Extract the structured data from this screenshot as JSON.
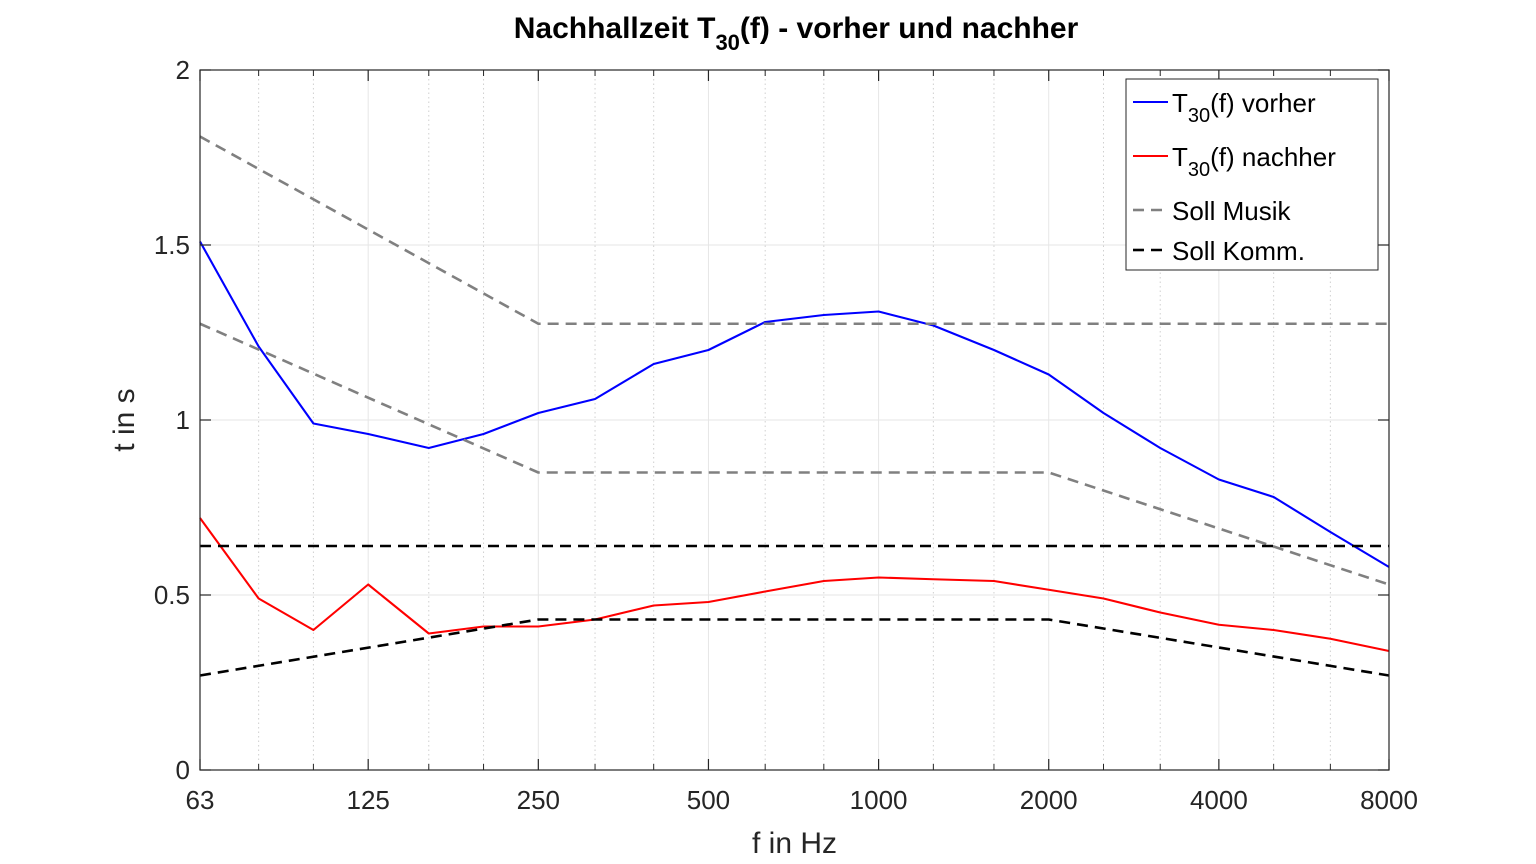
{
  "chart_data": {
    "type": "line",
    "title": {
      "main": "Nachhallzeit T",
      "sub": "30",
      "rest": "(f) - vorher und nachher"
    },
    "xlabel": "f in Hz",
    "ylabel": "t in s",
    "x_scale": "log2",
    "xlim": [
      63,
      8000
    ],
    "ylim": [
      0,
      2
    ],
    "x_ticks": [
      63,
      125,
      250,
      500,
      1000,
      2000,
      4000,
      8000
    ],
    "x_tick_labels": [
      "63",
      "125",
      "250",
      "500",
      "1000",
      "2000",
      "4000",
      "8000"
    ],
    "y_ticks": [
      0,
      0.5,
      1,
      1.5,
      2
    ],
    "y_tick_labels": [
      "0",
      "0.5",
      "1",
      "1.5",
      "2"
    ],
    "x_minor_ticks": [
      80,
      100,
      160,
      200,
      315,
      400,
      630,
      800,
      1250,
      1600,
      2500,
      3150,
      5000,
      6300
    ],
    "grid": true,
    "legend_position": "top-right",
    "series": [
      {
        "name_main": "T",
        "name_sub": "30",
        "name_rest": "(f) vorher",
        "color": "#0000ff",
        "style": "solid",
        "x": [
          63,
          80,
          100,
          125,
          160,
          200,
          250,
          315,
          400,
          500,
          630,
          800,
          1000,
          1250,
          1600,
          2000,
          2500,
          3150,
          4000,
          5000,
          6300,
          8000
        ],
        "y": [
          1.51,
          1.21,
          0.99,
          0.96,
          0.92,
          0.96,
          1.02,
          1.06,
          1.16,
          1.2,
          1.28,
          1.3,
          1.31,
          1.27,
          1.2,
          1.13,
          1.02,
          0.92,
          0.83,
          0.78,
          0.68,
          0.58
        ]
      },
      {
        "name_main": "T",
        "name_sub": "30",
        "name_rest": "(f) nachher",
        "color": "#ff0000",
        "style": "solid",
        "x": [
          63,
          80,
          100,
          125,
          160,
          200,
          250,
          315,
          400,
          500,
          630,
          800,
          1000,
          1250,
          1600,
          2000,
          2500,
          3150,
          4000,
          5000,
          6300,
          8000
        ],
        "y": [
          0.72,
          0.49,
          0.4,
          0.53,
          0.39,
          0.41,
          0.41,
          0.43,
          0.47,
          0.48,
          0.51,
          0.54,
          0.55,
          0.545,
          0.54,
          0.515,
          0.49,
          0.45,
          0.415,
          0.4,
          0.375,
          0.34
        ]
      },
      {
        "name_main": "Soll Musik",
        "color": "#808080",
        "style": "dashed",
        "x": [
          63,
          250,
          8000
        ],
        "y": [
          1.81,
          1.275,
          1.275
        ]
      },
      {
        "legend": false,
        "color": "#808080",
        "style": "dashed",
        "x": [
          63,
          250,
          2000,
          8000
        ],
        "y": [
          1.275,
          0.85,
          0.85,
          0.53
        ]
      },
      {
        "name_main": "Soll Komm.",
        "color": "#000000",
        "style": "dashed",
        "x": [
          63,
          8000
        ],
        "y": [
          0.64,
          0.64
        ]
      },
      {
        "legend": false,
        "color": "#000000",
        "style": "dashed",
        "x": [
          63,
          250,
          2000,
          8000
        ],
        "y": [
          0.27,
          0.43,
          0.43,
          0.27
        ]
      }
    ]
  }
}
